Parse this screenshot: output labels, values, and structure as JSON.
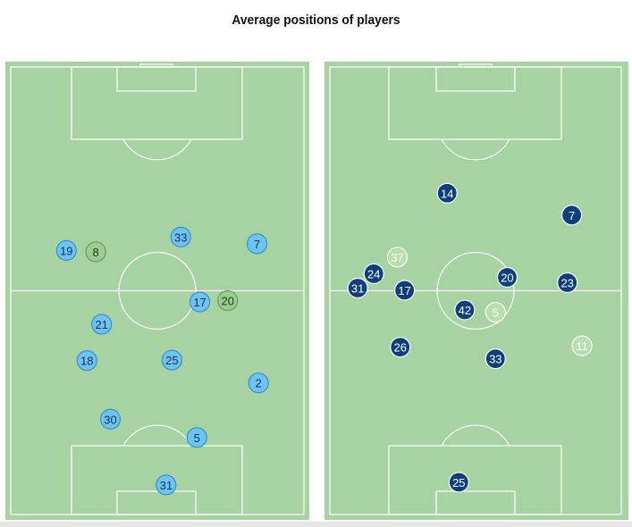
{
  "title": "Average positions of players",
  "colors": {
    "pitch": "#a6d3a1",
    "lines": "#ffffff",
    "left_team_main": "#6cc4f5",
    "left_team_alt": "#9ccc92",
    "right_team_main": "#0d3f7e",
    "right_team_alt": "#b7dfae"
  },
  "pitches": [
    {
      "id": "left",
      "players": [
        {
          "number": "33",
          "x": 58,
          "y": 62,
          "style": "main"
        },
        {
          "number": "19",
          "x": 19,
          "y": 59,
          "style": "main"
        },
        {
          "number": "8",
          "x": 29,
          "y": 58.7,
          "style": "alt"
        },
        {
          "number": "7",
          "x": 84,
          "y": 60.5,
          "style": "main"
        },
        {
          "number": "17",
          "x": 64.5,
          "y": 47.5,
          "style": "main"
        },
        {
          "number": "20",
          "x": 74,
          "y": 47.8,
          "style": "alt"
        },
        {
          "number": "21",
          "x": 31,
          "y": 42.5,
          "style": "main"
        },
        {
          "number": "25",
          "x": 55,
          "y": 34.5,
          "style": "main"
        },
        {
          "number": "18",
          "x": 26,
          "y": 34.4,
          "style": "main"
        },
        {
          "number": "2",
          "x": 84.5,
          "y": 29.4,
          "style": "main"
        },
        {
          "number": "30",
          "x": 34,
          "y": 21.3,
          "style": "main"
        },
        {
          "number": "5",
          "x": 63.5,
          "y": 17.2,
          "style": "main"
        },
        {
          "number": "31",
          "x": 53,
          "y": 6.6,
          "style": "main"
        }
      ]
    },
    {
      "id": "right",
      "players": [
        {
          "number": "14",
          "x": 40,
          "y": 71.8,
          "style": "main"
        },
        {
          "number": "7",
          "x": 82.5,
          "y": 66.9,
          "style": "main"
        },
        {
          "number": "37",
          "x": 23,
          "y": 57.5,
          "style": "alt"
        },
        {
          "number": "24",
          "x": 15,
          "y": 53.8,
          "style": "main"
        },
        {
          "number": "20",
          "x": 60.5,
          "y": 53,
          "style": "main"
        },
        {
          "number": "23",
          "x": 81,
          "y": 51.8,
          "style": "main"
        },
        {
          "number": "31",
          "x": 9.5,
          "y": 50.6,
          "style": "main"
        },
        {
          "number": "17",
          "x": 25.5,
          "y": 50.1,
          "style": "main"
        },
        {
          "number": "42",
          "x": 46,
          "y": 45.7,
          "style": "main"
        },
        {
          "number": "5",
          "x": 56.5,
          "y": 45.2,
          "style": "alt"
        },
        {
          "number": "11",
          "x": 86,
          "y": 37.7,
          "style": "alt"
        },
        {
          "number": "26",
          "x": 24,
          "y": 37.4,
          "style": "main"
        },
        {
          "number": "33",
          "x": 56.5,
          "y": 34.8,
          "style": "main"
        },
        {
          "number": "25",
          "x": 44,
          "y": 7.2,
          "style": "main"
        }
      ]
    }
  ]
}
